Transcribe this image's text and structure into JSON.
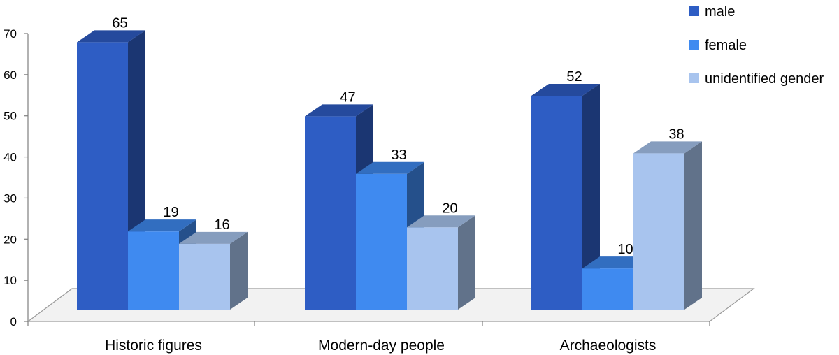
{
  "chart_data": {
    "type": "bar",
    "three_d": true,
    "categories": [
      "Historic figures",
      "Modern-day people",
      "Archaeologists"
    ],
    "series": [
      {
        "name": "male",
        "values": [
          65,
          47,
          52
        ],
        "color": "#2E5DC4"
      },
      {
        "name": "female",
        "values": [
          19,
          33,
          10
        ],
        "color": "#3F8AF0"
      },
      {
        "name": "unidentified gender",
        "values": [
          16,
          20,
          38
        ],
        "color": "#A8C4EE"
      }
    ],
    "y_ticks": [
      "0",
      "10",
      "20",
      "30",
      "40",
      "50",
      "60",
      "70"
    ],
    "ylim": [
      0,
      70
    ],
    "data_labels": true,
    "grid": false,
    "legend_position": "top-right"
  }
}
